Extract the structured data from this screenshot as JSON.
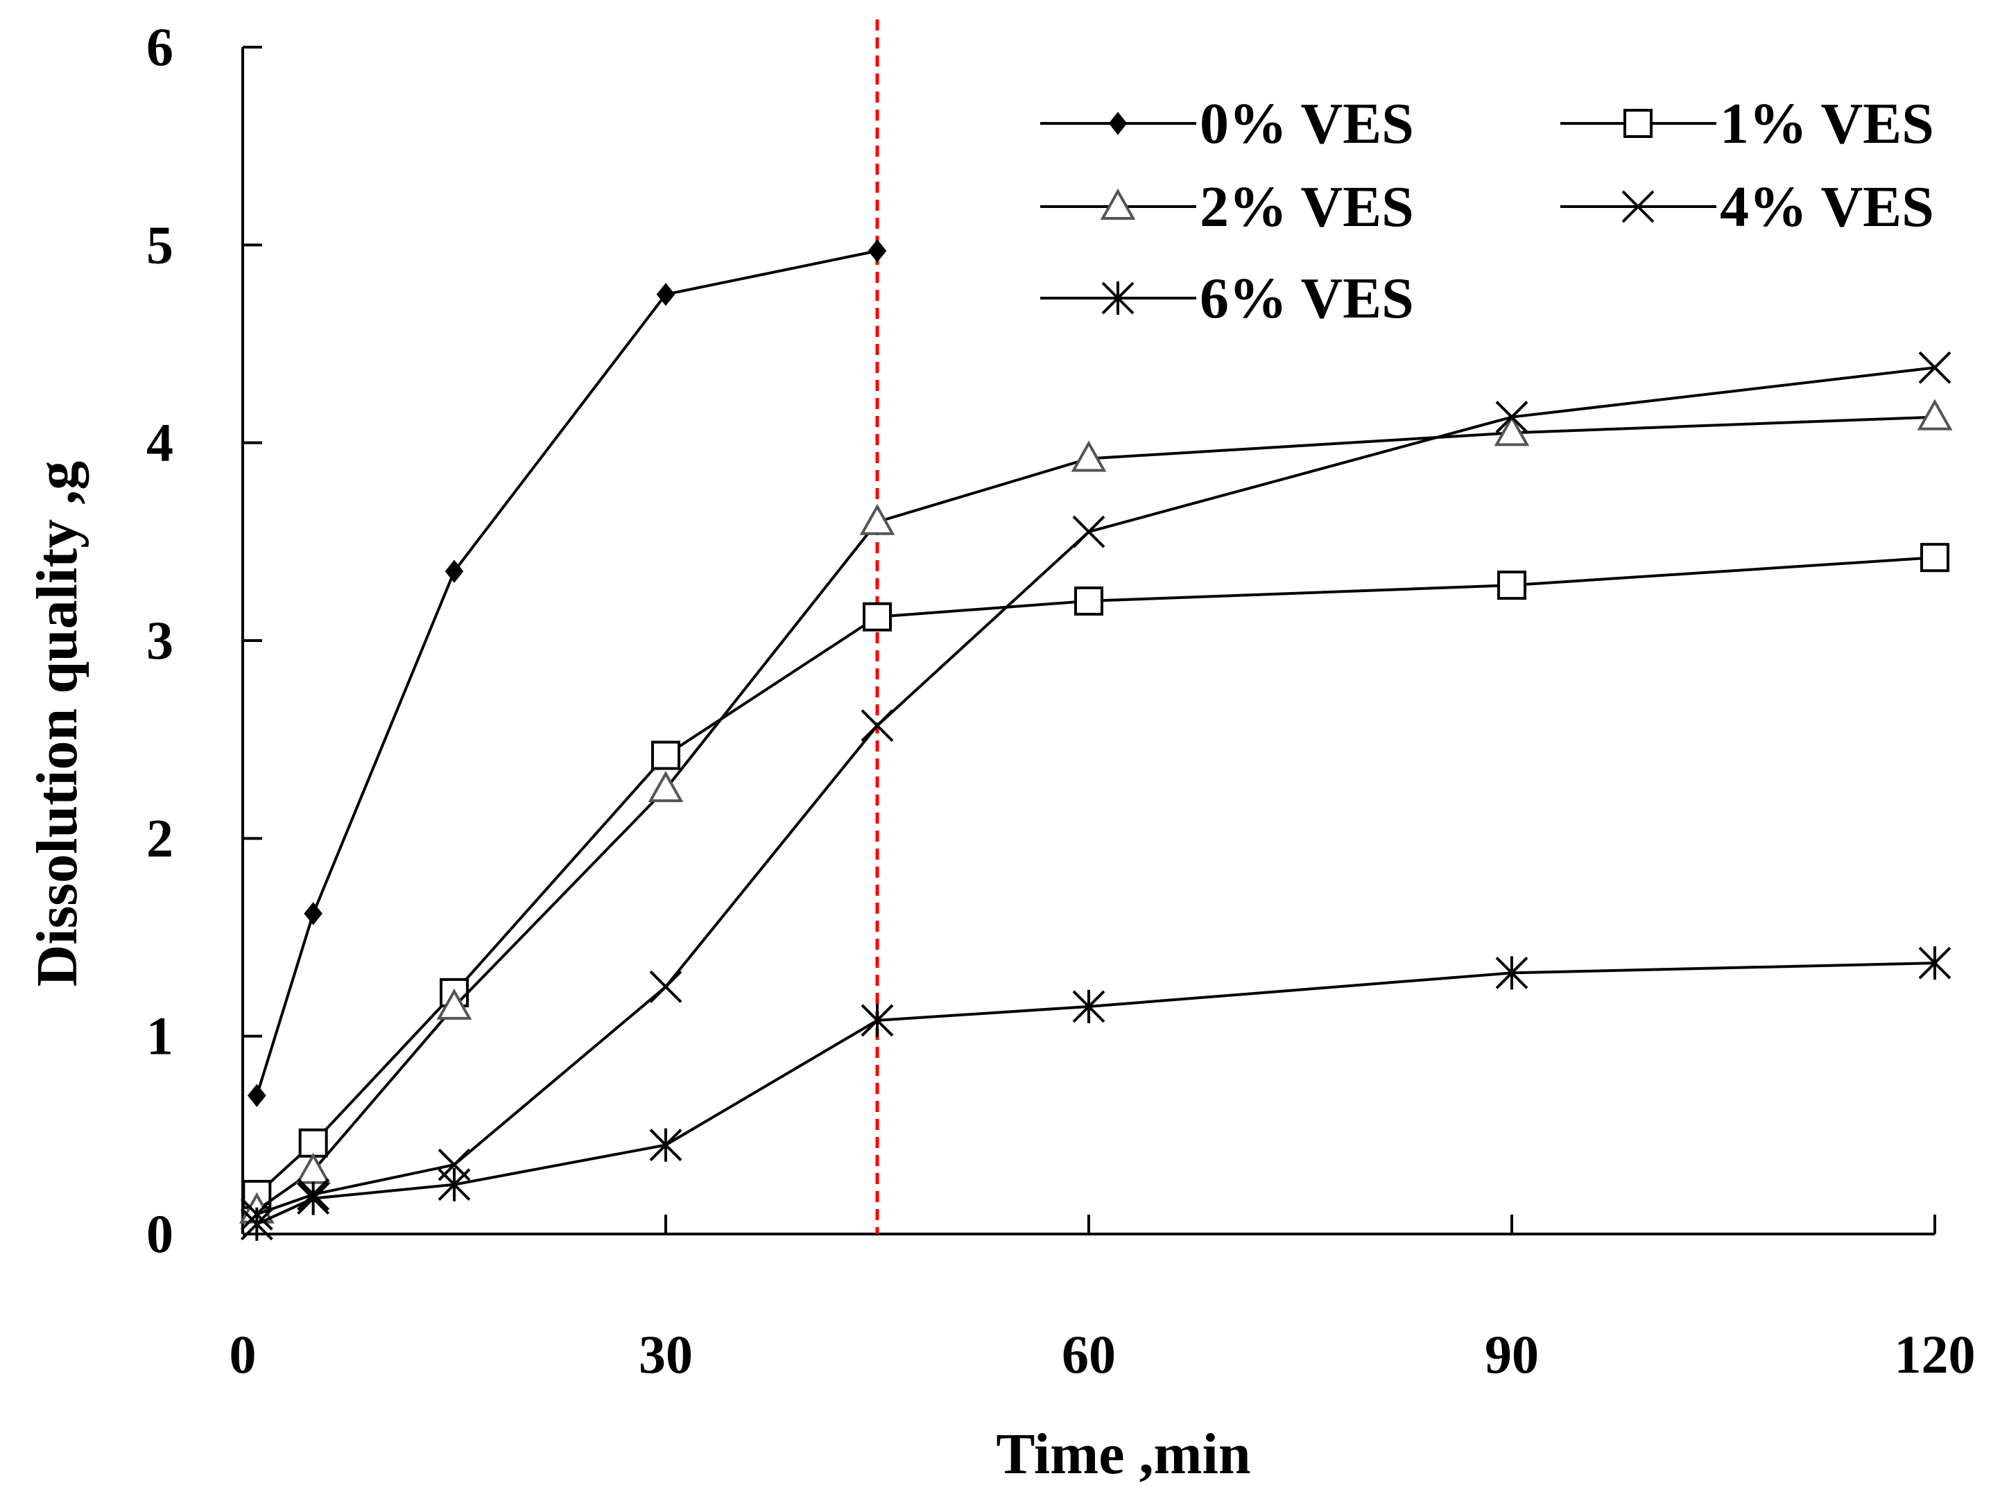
{
  "chart_data": {
    "type": "line",
    "xlabel": "Time ,min",
    "ylabel": "Dissolution quality ,g",
    "xlim": [
      0,
      120
    ],
    "ylim": [
      0,
      6
    ],
    "xticks": [
      "0",
      "30",
      "60",
      "90",
      "120"
    ],
    "yticks": [
      "0",
      "1",
      "2",
      "3",
      "4",
      "5",
      "6"
    ],
    "xtick_values": [
      0,
      30,
      60,
      90,
      120
    ],
    "ytick_values": [
      0,
      1,
      2,
      3,
      4,
      5,
      6
    ],
    "reference_line": {
      "orientation": "vertical",
      "x": 45,
      "color": "#ff0000",
      "style": "dashed"
    },
    "legend_position": "top-right",
    "series": [
      {
        "name": "0% VES",
        "marker": "diamond",
        "x": [
          1,
          5,
          15,
          30,
          45
        ],
        "values": [
          0.7,
          1.62,
          3.35,
          4.75,
          4.97
        ]
      },
      {
        "name": "1% VES",
        "marker": "square",
        "x": [
          1,
          5,
          15,
          30,
          45,
          60,
          90,
          120
        ],
        "values": [
          0.2,
          0.46,
          1.22,
          2.42,
          3.12,
          3.2,
          3.28,
          3.42
        ]
      },
      {
        "name": "2% VES",
        "marker": "triangle",
        "x": [
          1,
          5,
          15,
          30,
          45,
          60,
          90,
          120
        ],
        "values": [
          0.12,
          0.32,
          1.15,
          2.25,
          3.6,
          3.92,
          4.05,
          4.13
        ]
      },
      {
        "name": "4% VES",
        "marker": "x",
        "x": [
          1,
          5,
          15,
          30,
          45,
          60,
          90,
          120
        ],
        "values": [
          0.1,
          0.2,
          0.35,
          1.25,
          2.57,
          3.55,
          4.13,
          4.38
        ]
      },
      {
        "name": "6% VES",
        "marker": "asterisk",
        "x": [
          1,
          5,
          15,
          30,
          45,
          60,
          90,
          120
        ],
        "values": [
          0.05,
          0.18,
          0.25,
          0.45,
          1.08,
          1.15,
          1.32,
          1.37
        ]
      }
    ]
  }
}
